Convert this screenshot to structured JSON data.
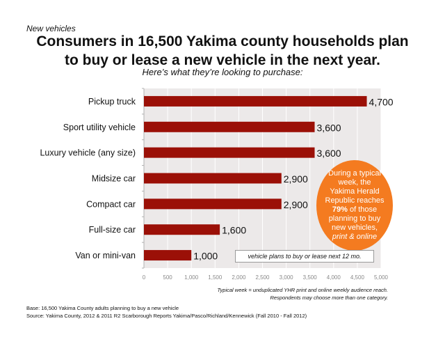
{
  "header": {
    "kicker": "New vehicles",
    "title_line1": "Consumers in 16,500 Yakima county households plan",
    "title_line2": "to buy or lease a new vehicle in the next year.",
    "subtitle": "Here’s what they’re looking to purchase:"
  },
  "callout": {
    "line1": "During a typical",
    "line2": "week, the",
    "line3": "Yakima Herald",
    "line4": "Republic reaches",
    "pct": "79%",
    "line5_rest": " of those",
    "line6": "planning to buy",
    "line7": "new vehicles,",
    "line8": "print & online",
    "color": "#f47b20"
  },
  "legend_box": "vehicle plans to buy or lease next 12 mo.",
  "notes": {
    "line1": "Typical week = unduplicated YHR print and online weekly audience reach.",
    "line2": "Respondents may choose more than one category."
  },
  "footer": {
    "base": "Base: 16,500 Yakima County adults planning to buy a new vehicle",
    "source": "Source: Yakima County, 2012 & 2011 R2 Scarborough Reports Yakima/Pasco/Richland/Kennewick (Fall 2010 - Fall 2012)"
  },
  "chart_data": {
    "type": "bar",
    "orientation": "horizontal",
    "categories": [
      "Pickup truck",
      "Sport utility vehicle",
      "Luxury vehicle (any size)",
      "Midsize car",
      "Compact car",
      "Full-size car",
      "Van or mini-van"
    ],
    "values": [
      4700,
      3600,
      3600,
      2900,
      2900,
      1600,
      1000
    ],
    "data_labels": [
      "4,700",
      "3,600",
      "3,600",
      "2,900",
      "2,900",
      "1,600",
      "1,000"
    ],
    "xlim": [
      0,
      5000
    ],
    "x_ticks": [
      0,
      500,
      1000,
      1500,
      2000,
      2500,
      3000,
      3500,
      4000,
      4500,
      5000
    ],
    "x_tick_labels": [
      "0",
      "500",
      "1,000",
      "1,500",
      "2,000",
      "2,500",
      "3,000",
      "3,500",
      "4,000",
      "4,500",
      "5,000"
    ],
    "bar_color": "#9b1007",
    "plot_background": "#ece9e9",
    "grid": true
  }
}
